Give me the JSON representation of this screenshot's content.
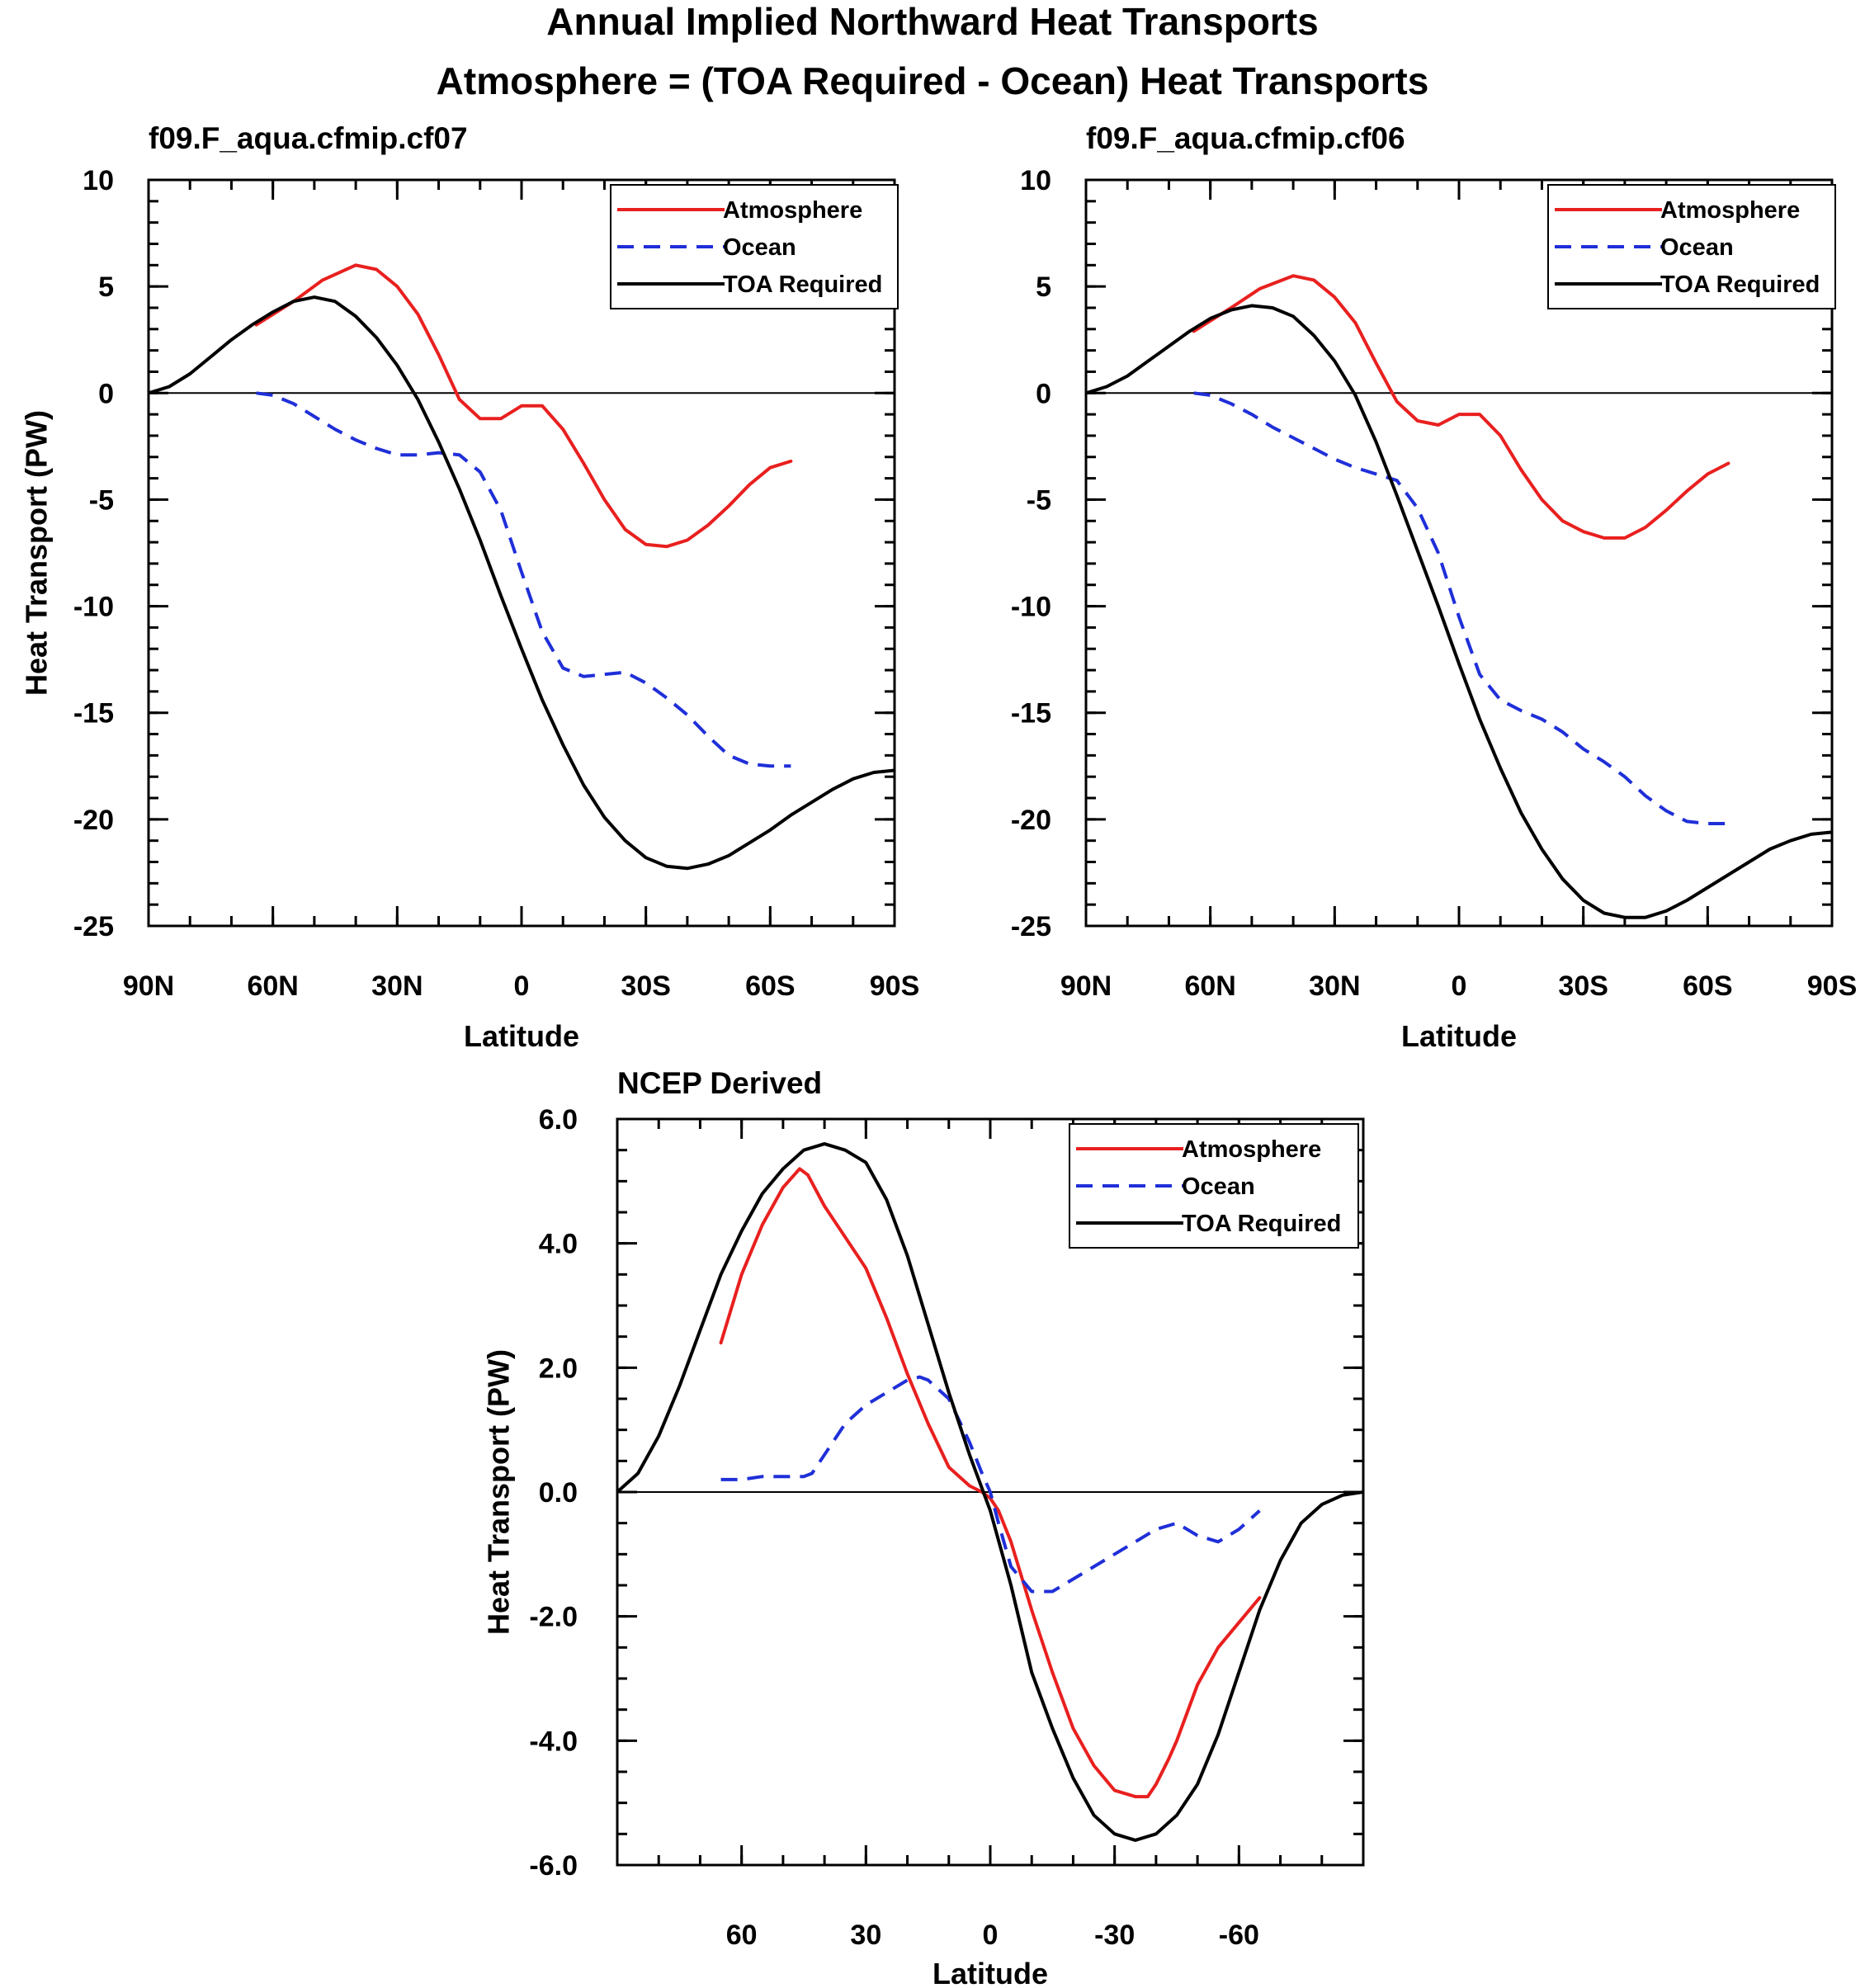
{
  "figure": {
    "title_line1": "Annual Implied Northward Heat Transports",
    "title_line2": "Atmosphere = (TOA Required - Ocean) Heat Transports"
  },
  "colors": {
    "atmosphere": "#e8201f",
    "ocean": "#1f2fd8",
    "toa": "#000000"
  },
  "chart_data": [
    {
      "type": "line",
      "title": "f09.F_aqua.cfmip.cf07",
      "xlabel": "Latitude",
      "ylabel": "Heat Transport (PW)",
      "x_direction": "north-to-south",
      "xlim": [
        90,
        -90
      ],
      "ylim": [
        -25,
        10
      ],
      "xticks": [
        90,
        60,
        30,
        0,
        -30,
        -60,
        -90
      ],
      "xtick_labels": [
        "90N",
        "60N",
        "30N",
        "0",
        "30S",
        "60S",
        "90S"
      ],
      "yticks": [
        10,
        5,
        0,
        -5,
        -10,
        -15,
        -20,
        -25
      ],
      "ytick_labels": [
        "10",
        "5",
        "0",
        "-5",
        "-10",
        "-15",
        "-20",
        "-25"
      ],
      "zero_line": true,
      "legend": "top-right",
      "series": [
        {
          "name": "Atmosphere",
          "style": "solid",
          "color": "#e8201f",
          "x": [
            64,
            55,
            48,
            40,
            35,
            30,
            25,
            20,
            15,
            10,
            5,
            0,
            -5,
            -10,
            -15,
            -20,
            -25,
            -30,
            -35,
            -40,
            -45,
            -50,
            -55,
            -60,
            -65
          ],
          "y": [
            3.2,
            4.3,
            5.3,
            6.0,
            5.8,
            5.0,
            3.7,
            1.8,
            -0.3,
            -1.2,
            -1.2,
            -0.6,
            -0.6,
            -1.7,
            -3.3,
            -5.0,
            -6.4,
            -7.1,
            -7.2,
            -6.9,
            -6.2,
            -5.3,
            -4.3,
            -3.5,
            -3.2
          ]
        },
        {
          "name": "Ocean",
          "style": "dashed",
          "color": "#1f2fd8",
          "x": [
            64,
            60,
            55,
            50,
            45,
            40,
            35,
            30,
            25,
            20,
            15,
            10,
            5,
            0,
            -5,
            -10,
            -15,
            -20,
            -25,
            -30,
            -35,
            -40,
            -45,
            -50,
            -55,
            -60,
            -65
          ],
          "y": [
            0.0,
            -0.1,
            -0.5,
            -1.1,
            -1.7,
            -2.2,
            -2.6,
            -2.9,
            -2.9,
            -2.8,
            -2.9,
            -3.7,
            -5.5,
            -8.4,
            -11.2,
            -12.9,
            -13.3,
            -13.2,
            -13.1,
            -13.6,
            -14.3,
            -15.1,
            -16.1,
            -17.0,
            -17.4,
            -17.5,
            -17.5
          ]
        },
        {
          "name": "TOA Required",
          "style": "solid",
          "color": "#000000",
          "x": [
            90,
            85,
            80,
            75,
            70,
            65,
            60,
            55,
            50,
            45,
            40,
            35,
            30,
            25,
            20,
            15,
            10,
            5,
            0,
            -5,
            -10,
            -15,
            -20,
            -25,
            -30,
            -35,
            -40,
            -45,
            -50,
            -55,
            -60,
            -65,
            -70,
            -75,
            -80,
            -85,
            -90
          ],
          "y": [
            0.0,
            0.3,
            0.9,
            1.7,
            2.5,
            3.2,
            3.8,
            4.3,
            4.5,
            4.3,
            3.6,
            2.6,
            1.3,
            -0.3,
            -2.3,
            -4.5,
            -6.9,
            -9.5,
            -12.0,
            -14.4,
            -16.5,
            -18.4,
            -19.9,
            -21.0,
            -21.8,
            -22.2,
            -22.3,
            -22.1,
            -21.7,
            -21.1,
            -20.5,
            -19.8,
            -19.2,
            -18.6,
            -18.1,
            -17.8,
            -17.7
          ]
        }
      ]
    },
    {
      "type": "line",
      "title": "f09.F_aqua.cfmip.cf06",
      "xlabel": "Latitude",
      "ylabel": "",
      "x_direction": "north-to-south",
      "xlim": [
        90,
        -90
      ],
      "ylim": [
        -25,
        10
      ],
      "xticks": [
        90,
        60,
        30,
        0,
        -30,
        -60,
        -90
      ],
      "xtick_labels": [
        "90N",
        "60N",
        "30N",
        "0",
        "30S",
        "60S",
        "90S"
      ],
      "yticks": [
        10,
        5,
        0,
        -5,
        -10,
        -15,
        -20,
        -25
      ],
      "ytick_labels": [
        "10",
        "5",
        "0",
        "-5",
        "-10",
        "-15",
        "-20",
        "-25"
      ],
      "zero_line": true,
      "legend": "top-right",
      "series": [
        {
          "name": "Atmosphere",
          "style": "solid",
          "color": "#e8201f",
          "x": [
            64,
            55,
            48,
            40,
            35,
            30,
            25,
            20,
            15,
            10,
            5,
            0,
            -5,
            -10,
            -15,
            -20,
            -25,
            -30,
            -35,
            -40,
            -45,
            -50,
            -55,
            -60,
            -65
          ],
          "y": [
            2.9,
            4.0,
            4.9,
            5.5,
            5.3,
            4.5,
            3.3,
            1.4,
            -0.4,
            -1.3,
            -1.5,
            -1.0,
            -1.0,
            -2.0,
            -3.6,
            -5.0,
            -6.0,
            -6.5,
            -6.8,
            -6.8,
            -6.3,
            -5.5,
            -4.6,
            -3.8,
            -3.3
          ]
        },
        {
          "name": "Ocean",
          "style": "dashed",
          "color": "#1f2fd8",
          "x": [
            64,
            60,
            55,
            50,
            45,
            40,
            35,
            30,
            25,
            20,
            15,
            10,
            5,
            0,
            -5,
            -10,
            -15,
            -20,
            -25,
            -30,
            -35,
            -40,
            -45,
            -50,
            -55,
            -60,
            -65
          ],
          "y": [
            0.0,
            -0.1,
            -0.5,
            -1.0,
            -1.6,
            -2.1,
            -2.6,
            -3.1,
            -3.5,
            -3.8,
            -4.1,
            -5.4,
            -7.5,
            -10.5,
            -13.2,
            -14.4,
            -14.9,
            -15.3,
            -15.9,
            -16.7,
            -17.3,
            -18.0,
            -18.9,
            -19.6,
            -20.1,
            -20.2,
            -20.2
          ]
        },
        {
          "name": "TOA Required",
          "style": "solid",
          "color": "#000000",
          "x": [
            90,
            85,
            80,
            75,
            70,
            65,
            60,
            55,
            50,
            45,
            40,
            35,
            30,
            25,
            20,
            15,
            10,
            5,
            0,
            -5,
            -10,
            -15,
            -20,
            -25,
            -30,
            -35,
            -40,
            -45,
            -50,
            -55,
            -60,
            -65,
            -70,
            -75,
            -80,
            -85,
            -90
          ],
          "y": [
            0.0,
            0.3,
            0.8,
            1.5,
            2.2,
            2.9,
            3.5,
            3.9,
            4.1,
            4.0,
            3.6,
            2.7,
            1.5,
            -0.1,
            -2.3,
            -4.8,
            -7.4,
            -10.0,
            -12.7,
            -15.3,
            -17.6,
            -19.7,
            -21.4,
            -22.8,
            -23.8,
            -24.4,
            -24.6,
            -24.6,
            -24.3,
            -23.8,
            -23.2,
            -22.6,
            -22.0,
            -21.4,
            -21.0,
            -20.7,
            -20.6
          ]
        }
      ]
    },
    {
      "type": "line",
      "title": "NCEP Derived",
      "xlabel": "Latitude",
      "ylabel": "Heat Transport (PW)",
      "x_direction": "north-to-south",
      "xlim": [
        90,
        -90
      ],
      "ylim": [
        -6,
        6
      ],
      "xticks": [
        60,
        30,
        0,
        -30,
        -60
      ],
      "xtick_labels": [
        "60",
        "30",
        "0",
        "-30",
        "-60"
      ],
      "yticks": [
        6,
        4,
        2,
        0,
        -2,
        -4,
        -6
      ],
      "ytick_labels": [
        "6.0",
        "4.0",
        "2.0",
        "0.0",
        "-2.0",
        "-4.0",
        "-6.0"
      ],
      "zero_line": true,
      "legend": "top-right",
      "series": [
        {
          "name": "Atmosphere",
          "style": "solid",
          "color": "#e8201f",
          "x": [
            65,
            60,
            55,
            50,
            46,
            44,
            40,
            35,
            30,
            25,
            20,
            15,
            10,
            5,
            2,
            0,
            -2,
            -5,
            -10,
            -15,
            -20,
            -25,
            -30,
            -35,
            -38,
            -40,
            -43,
            -45,
            -50,
            -55,
            -60,
            -65
          ],
          "y": [
            2.4,
            3.5,
            4.3,
            4.9,
            5.2,
            5.1,
            4.6,
            4.1,
            3.6,
            2.8,
            1.9,
            1.1,
            0.4,
            0.1,
            0.0,
            -0.1,
            -0.3,
            -0.8,
            -1.9,
            -2.9,
            -3.8,
            -4.4,
            -4.8,
            -4.9,
            -4.9,
            -4.7,
            -4.3,
            -4.0,
            -3.1,
            -2.5,
            -2.1,
            -1.7
          ]
        },
        {
          "name": "Ocean",
          "style": "dashed",
          "color": "#1f2fd8",
          "x": [
            65,
            60,
            55,
            50,
            45,
            43,
            40,
            35,
            30,
            25,
            20,
            17,
            15,
            10,
            5,
            2,
            0,
            -2,
            -5,
            -10,
            -15,
            -20,
            -25,
            -30,
            -35,
            -40,
            -45,
            -50,
            -55,
            -60,
            -65
          ],
          "y": [
            0.2,
            0.2,
            0.25,
            0.25,
            0.25,
            0.3,
            0.6,
            1.1,
            1.4,
            1.6,
            1.8,
            1.85,
            1.8,
            1.5,
            0.8,
            0.3,
            0.0,
            -0.5,
            -1.2,
            -1.6,
            -1.6,
            -1.4,
            -1.2,
            -1.0,
            -0.8,
            -0.6,
            -0.5,
            -0.7,
            -0.8,
            -0.6,
            -0.3
          ]
        },
        {
          "name": "TOA Required",
          "style": "solid",
          "color": "#000000",
          "x": [
            90,
            85,
            80,
            75,
            70,
            65,
            60,
            55,
            50,
            45,
            40,
            35,
            30,
            25,
            20,
            15,
            10,
            5,
            0,
            -5,
            -10,
            -15,
            -20,
            -25,
            -30,
            -35,
            -40,
            -45,
            -50,
            -55,
            -60,
            -65,
            -70,
            -75,
            -80,
            -85,
            -90
          ],
          "y": [
            0.0,
            0.3,
            0.9,
            1.7,
            2.6,
            3.5,
            4.2,
            4.8,
            5.2,
            5.5,
            5.6,
            5.5,
            5.3,
            4.7,
            3.8,
            2.7,
            1.6,
            0.6,
            -0.3,
            -1.5,
            -2.9,
            -3.8,
            -4.6,
            -5.2,
            -5.5,
            -5.6,
            -5.5,
            -5.2,
            -4.7,
            -3.9,
            -2.9,
            -1.9,
            -1.1,
            -0.5,
            -0.2,
            -0.05,
            0.0
          ]
        }
      ]
    }
  ]
}
